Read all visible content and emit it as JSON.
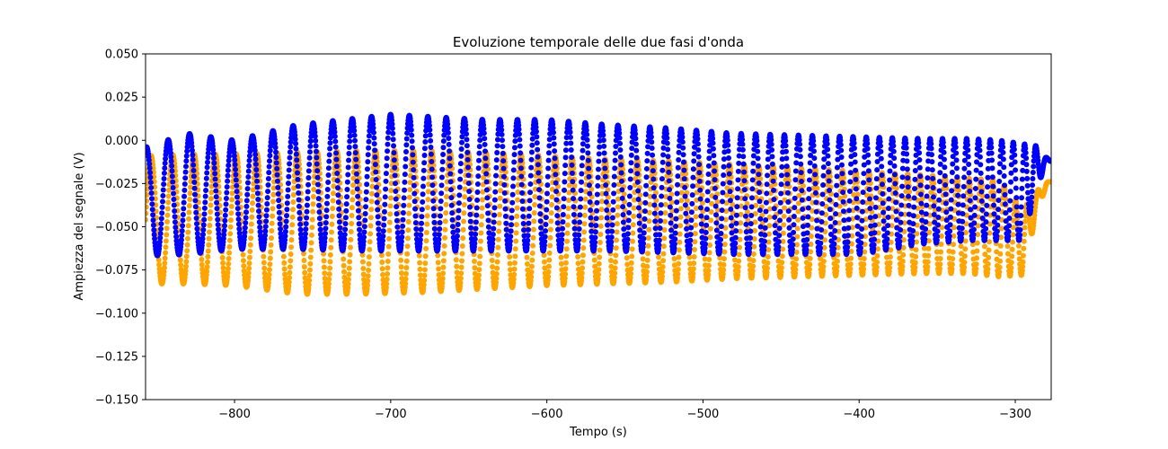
{
  "chart_data": {
    "type": "scatter",
    "title": "Evoluzione temporale delle due fasi d'onda",
    "xlabel": "Tempo (s)",
    "ylabel": "Ampiezza del segnale (V)",
    "xlim": [
      -857,
      -277
    ],
    "ylim": [
      -0.15,
      0.05
    ],
    "x_ticks": [
      -800,
      -700,
      -600,
      -500,
      -400,
      -300
    ],
    "x_tick_labels": [
      "−800",
      "−700",
      "−600",
      "−500",
      "−400",
      "−300"
    ],
    "y_ticks": [
      0.05,
      0.025,
      0.0,
      -0.025,
      -0.05,
      -0.075,
      -0.1,
      -0.125,
      -0.15
    ],
    "y_tick_labels": [
      "0.050",
      "0.025",
      "0.000",
      "−0.025",
      "−0.050",
      "−0.075",
      "−0.100",
      "−0.125",
      "−0.150"
    ],
    "grid": false,
    "legend": "none",
    "series": [
      {
        "color": "#ffa500",
        "envelope": {
          "x": [
            -857,
            -830,
            -800,
            -760,
            -720,
            -680,
            -640,
            -600,
            -560,
            -520,
            -480,
            -440,
            -400,
            -360,
            -330,
            -310,
            -295,
            -287,
            -280,
            -277
          ],
          "upper": [
            -0.009,
            -0.008,
            -0.008,
            -0.007,
            -0.006,
            -0.006,
            -0.007,
            -0.009,
            -0.011,
            -0.012,
            -0.014,
            -0.016,
            -0.018,
            -0.02,
            -0.022,
            -0.023,
            -0.04,
            -0.03,
            -0.024,
            -0.024
          ],
          "lower": [
            -0.083,
            -0.083,
            -0.084,
            -0.089,
            -0.089,
            -0.088,
            -0.086,
            -0.084,
            -0.083,
            -0.082,
            -0.08,
            -0.079,
            -0.078,
            -0.077,
            -0.077,
            -0.079,
            -0.078,
            -0.045,
            -0.026,
            -0.024
          ]
        }
      },
      {
        "color": "#0000ff",
        "envelope": {
          "x": [
            -857,
            -830,
            -800,
            -760,
            -720,
            -700,
            -680,
            -640,
            -600,
            -560,
            -520,
            -480,
            -440,
            -400,
            -360,
            -330,
            -310,
            -295,
            -287,
            -280,
            -277
          ],
          "upper": [
            -0.004,
            0.004,
            0.0,
            0.009,
            0.013,
            0.015,
            0.014,
            0.012,
            0.012,
            0.009,
            0.007,
            0.004,
            0.003,
            0.002,
            0.001,
            0.001,
            0.0,
            -0.002,
            -0.003,
            -0.01,
            -0.012
          ],
          "lower": [
            -0.067,
            -0.066,
            -0.063,
            -0.063,
            -0.064,
            -0.064,
            -0.064,
            -0.064,
            -0.064,
            -0.064,
            -0.065,
            -0.066,
            -0.066,
            -0.066,
            -0.06,
            -0.058,
            -0.058,
            -0.058,
            -0.03,
            -0.013,
            -0.012
          ]
        }
      }
    ]
  }
}
